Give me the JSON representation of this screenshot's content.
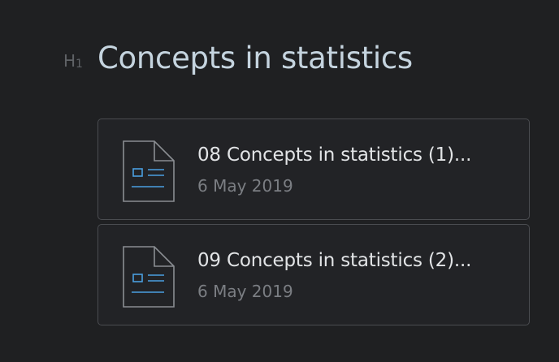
{
  "heading": {
    "level_marker": "H",
    "level_number": "1",
    "title": "Concepts in statistics"
  },
  "files": [
    {
      "name": "08 Concepts in statistics (1)...",
      "date": "6 May 2019",
      "icon": "document-icon"
    },
    {
      "name": "09 Concepts in statistics (2)...",
      "date": "6 May 2019",
      "icon": "document-icon"
    }
  ],
  "colors": {
    "background": "#1f2022",
    "title": "#c5d4df",
    "icon_accent": "#4a9fe0",
    "card_border": "#4a4c50"
  }
}
